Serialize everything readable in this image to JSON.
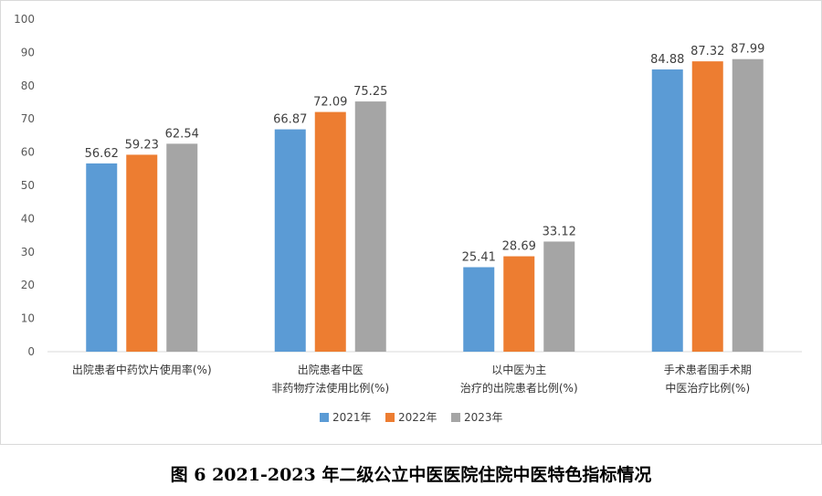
{
  "chart_data": {
    "type": "bar",
    "categories": [
      [
        "出院患者中药饮片使用率(%)"
      ],
      [
        "出院患者中医",
        "非药物疗法使用比例(%)"
      ],
      [
        "以中医为主",
        "治疗的出院患者比例(%)"
      ],
      [
        "手术患者围手术期",
        "中医治疗比例(%)"
      ]
    ],
    "series": [
      {
        "name": "2021年",
        "values": [
          56.62,
          66.87,
          25.41,
          84.88
        ]
      },
      {
        "name": "2022年",
        "values": [
          59.23,
          72.09,
          28.69,
          87.32
        ]
      },
      {
        "name": "2023年",
        "values": [
          62.54,
          75.25,
          33.12,
          87.99
        ]
      }
    ],
    "ylim": [
      0,
      100
    ],
    "yticks": [
      0,
      10,
      20,
      30,
      40,
      50,
      60,
      70,
      80,
      90,
      100
    ],
    "grid": false,
    "legend_position": "bottom",
    "colors": [
      "#5b9bd5",
      "#ed7d31",
      "#a5a5a5"
    ],
    "caption": "图 6 2021-2023 年二级公立中医医院住院中医特色指标情况"
  }
}
